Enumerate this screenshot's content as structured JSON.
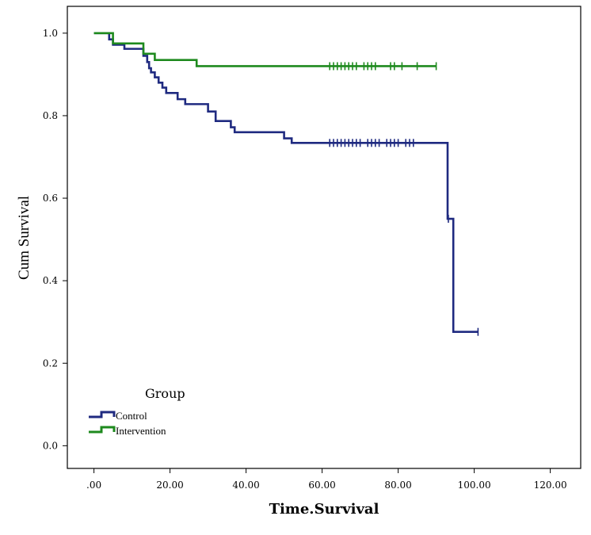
{
  "chart_data": {
    "type": "line",
    "subtype": "kaplan-meier step",
    "title": "",
    "xlabel": "Time.Survival",
    "ylabel": "Cum Survival",
    "xlim": [
      -7,
      128
    ],
    "ylim": [
      -0.055,
      1.065
    ],
    "xticks": [
      0,
      20,
      40,
      60,
      80,
      100,
      120
    ],
    "xtick_labels": [
      ".00",
      "20.00",
      "40.00",
      "60.00",
      "80.00",
      "100.00",
      "120.00"
    ],
    "yticks": [
      0.0,
      0.2,
      0.4,
      0.6,
      0.8,
      1.0
    ],
    "ytick_labels": [
      "0.0",
      "0.2",
      "0.4",
      "0.6",
      "0.8",
      "1.0"
    ],
    "legend": {
      "title": "Group",
      "position": "bottom-left",
      "entries": [
        "Control",
        "Intervention"
      ]
    },
    "series": [
      {
        "name": "Control",
        "color": "#1f2a80",
        "steps": [
          [
            0,
            1.0
          ],
          [
            3,
            1.0
          ],
          [
            4,
            0.985
          ],
          [
            5,
            0.972
          ],
          [
            8,
            0.962
          ],
          [
            12,
            0.962
          ],
          [
            13,
            0.945
          ],
          [
            14,
            0.93
          ],
          [
            14.5,
            0.915
          ],
          [
            15,
            0.905
          ],
          [
            16,
            0.893
          ],
          [
            17,
            0.88
          ],
          [
            18,
            0.868
          ],
          [
            19,
            0.855
          ],
          [
            22,
            0.84
          ],
          [
            24,
            0.828
          ],
          [
            30,
            0.81
          ],
          [
            32,
            0.787
          ],
          [
            36,
            0.772
          ],
          [
            37,
            0.76
          ],
          [
            50,
            0.745
          ],
          [
            52,
            0.734
          ],
          [
            93,
            0.55
          ],
          [
            94.5,
            0.276
          ],
          [
            101,
            0.276
          ]
        ],
        "censored": [
          62,
          63,
          64,
          65,
          66,
          67,
          68,
          69,
          70,
          72,
          73,
          74,
          75,
          77,
          78,
          79,
          80,
          82,
          83,
          84,
          93.2,
          101
        ]
      },
      {
        "name": "Intervention",
        "color": "#1e8a1e",
        "steps": [
          [
            0,
            1.0
          ],
          [
            4,
            1.0
          ],
          [
            5,
            0.975
          ],
          [
            13,
            0.95
          ],
          [
            16,
            0.935
          ],
          [
            27,
            0.92
          ],
          [
            90,
            0.92
          ]
        ],
        "censored": [
          62,
          63,
          64,
          65,
          66,
          67,
          68,
          69,
          71,
          72,
          73,
          74,
          78,
          79,
          81,
          85,
          90
        ]
      }
    ]
  }
}
